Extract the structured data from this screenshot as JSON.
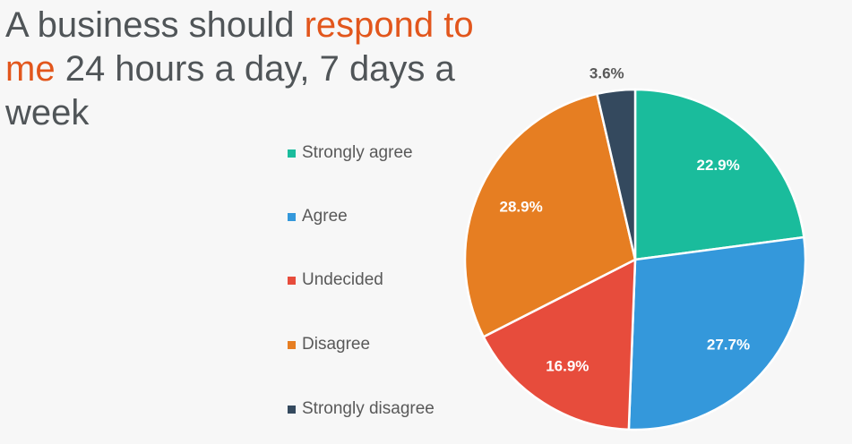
{
  "chart_data": {
    "type": "pie",
    "title_parts": {
      "pre": "A business should ",
      "highlight": "respond to me",
      "post": " 24 hours a day, 7 days a week"
    },
    "title_colors": {
      "text": "#505558",
      "highlight": "#e2561c"
    },
    "legend_position": "left",
    "start_angle_deg": 0,
    "direction": "clockwise",
    "slices": [
      {
        "label": "Strongly agree",
        "value": 22.9,
        "display": "22.9%",
        "color": "#1abc9c"
      },
      {
        "label": "Agree",
        "value": 27.7,
        "display": "27.7%",
        "color": "#3498db"
      },
      {
        "label": "Undecided",
        "value": 16.9,
        "display": "16.9%",
        "color": "#e74c3c"
      },
      {
        "label": "Disagree",
        "value": 28.9,
        "display": "28.9%",
        "color": "#e67e22"
      },
      {
        "label": "Strongly disagree",
        "value": 3.6,
        "display": "3.6%",
        "color": "#34495e"
      }
    ]
  }
}
